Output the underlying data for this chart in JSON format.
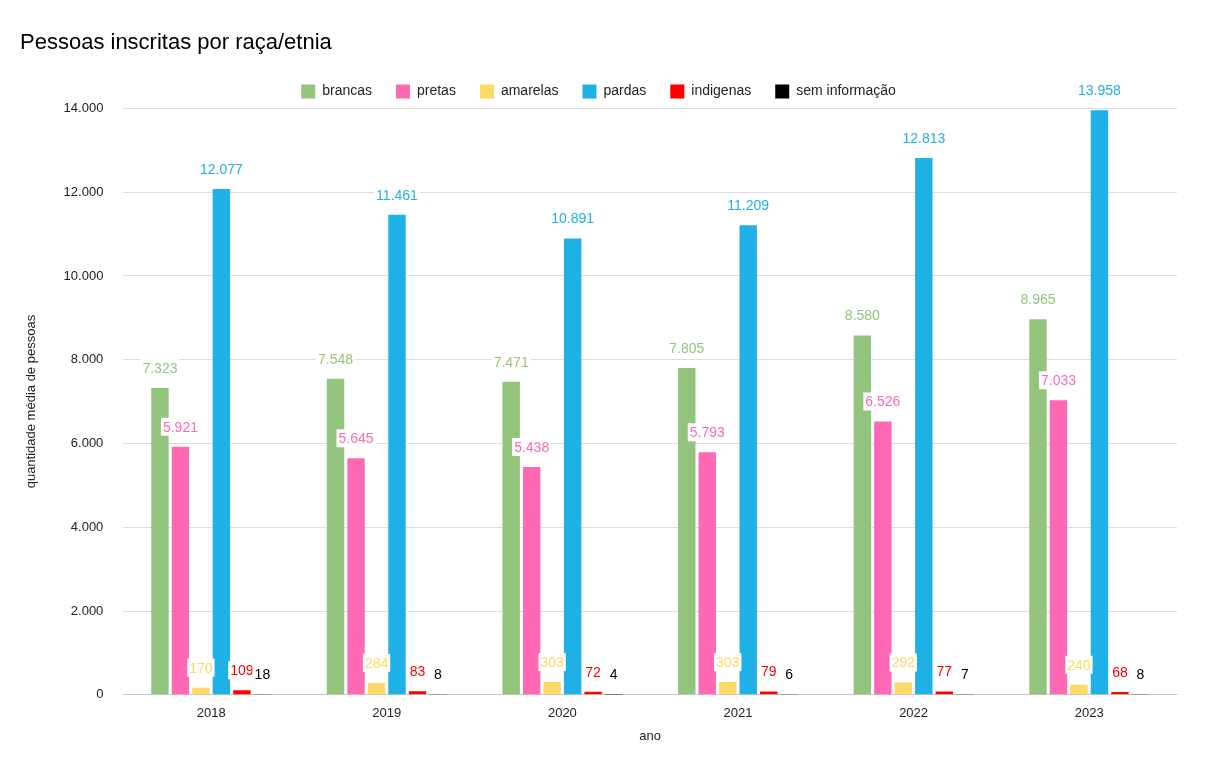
{
  "chart_data": {
    "type": "bar",
    "title": "Pessoas inscritas por raça/etnia",
    "xlabel": "ano",
    "ylabel": "quantidade média de pessoas",
    "categories": [
      "2018",
      "2019",
      "2020",
      "2021",
      "2022",
      "2023"
    ],
    "series": [
      {
        "name": "brancas",
        "color": "#93c47d",
        "values": [
          7323,
          7548,
          7471,
          7805,
          8580,
          8965
        ],
        "value_labels": [
          "7.323",
          "7.548",
          "7.471",
          "7.805",
          "8.580",
          "8.965"
        ]
      },
      {
        "name": "pretas",
        "color": "#ff69b4",
        "values": [
          5921,
          5645,
          5438,
          5793,
          6526,
          7033
        ],
        "value_labels": [
          "5.921",
          "5.645",
          "5.438",
          "5.793",
          "6.526",
          "7.033"
        ]
      },
      {
        "name": "amarelas",
        "color": "#ffd966",
        "values": [
          170,
          284,
          303,
          303,
          292,
          240
        ],
        "value_labels": [
          "170",
          "284",
          "303",
          "303",
          "292",
          "240"
        ]
      },
      {
        "name": "pardas",
        "color": "#1fb0e6",
        "values": [
          12077,
          11461,
          10891,
          11209,
          12813,
          13958
        ],
        "value_labels": [
          "12.077",
          "11.461",
          "10.891",
          "11.209",
          "12.813",
          "13.958"
        ]
      },
      {
        "name": "indigenas",
        "color": "#ff0000",
        "values": [
          109,
          83,
          72,
          79,
          77,
          68
        ],
        "value_labels": [
          "109",
          "83",
          "72",
          "79",
          "77",
          "68"
        ]
      },
      {
        "name": "sem informação",
        "color": "#000000",
        "values": [
          18,
          8,
          4,
          6,
          7,
          8
        ],
        "value_labels": [
          "18",
          "8",
          "4",
          "6",
          "7",
          "8"
        ]
      }
    ],
    "ylim": [
      0,
      14000
    ],
    "yticks": [
      {
        "value": 0,
        "label": "0"
      },
      {
        "value": 2000,
        "label": "2.000"
      },
      {
        "value": 4000,
        "label": "4.000"
      },
      {
        "value": 6000,
        "label": "6.000"
      },
      {
        "value": 8000,
        "label": "8.000"
      },
      {
        "value": 10000,
        "label": "10.000"
      },
      {
        "value": 12000,
        "label": "12.000"
      },
      {
        "value": 14000,
        "label": "14.000"
      }
    ],
    "grid": "y",
    "legend": "top"
  }
}
